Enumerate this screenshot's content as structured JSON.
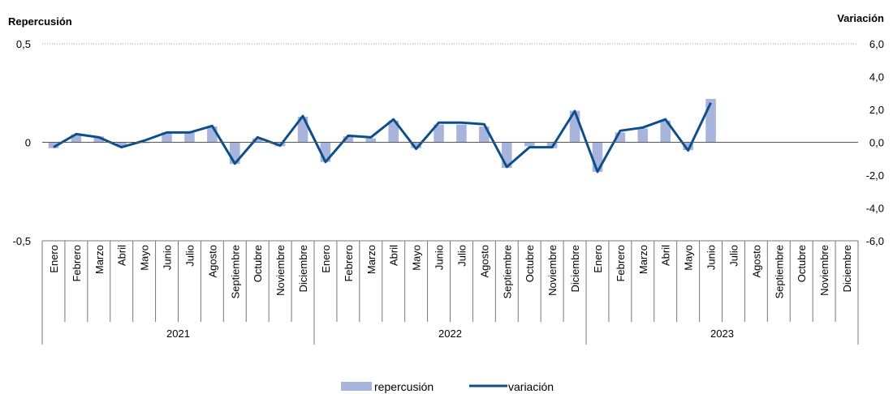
{
  "chart_data": {
    "type": "bar+line",
    "y_left_title": "Repercusión",
    "y_right_title": "Variación",
    "y_left_ticks": [
      "0,5",
      "0",
      "-0,5"
    ],
    "y_left_range": [
      -0.5,
      0.5
    ],
    "y_right_ticks": [
      "6,0",
      "4,0",
      "2,0",
      "0,0",
      "-2,0",
      "-4,0",
      "-6,0"
    ],
    "y_right_range": [
      -6,
      6
    ],
    "years": [
      "2021",
      "2022",
      "2023"
    ],
    "months": [
      "Enero",
      "Febrero",
      "Marzo",
      "Abril",
      "Mayo",
      "Junio",
      "Julio",
      "Agosto",
      "Septiembre",
      "Octubre",
      "Noviembre",
      "Diciembre"
    ],
    "series": [
      {
        "name": "repercusión",
        "type": "bar",
        "color": "#a9b4dc",
        "values": [
          -0.03,
          0.04,
          0.03,
          -0.02,
          0.0,
          0.05,
          0.05,
          0.08,
          -0.11,
          0.02,
          -0.02,
          0.13,
          -0.1,
          0.03,
          0.02,
          0.11,
          -0.03,
          0.09,
          0.09,
          0.08,
          -0.13,
          -0.02,
          -0.03,
          0.16,
          -0.15,
          0.05,
          0.07,
          0.11,
          -0.04,
          0.22,
          null,
          null,
          null,
          null,
          null,
          null
        ]
      },
      {
        "name": "variación",
        "type": "line",
        "color": "#0d4f8b",
        "axis": "right",
        "values": [
          -0.3,
          0.5,
          0.3,
          -0.3,
          0.1,
          0.6,
          0.6,
          1.0,
          -1.3,
          0.3,
          -0.2,
          1.6,
          -1.2,
          0.4,
          0.3,
          1.4,
          -0.4,
          1.2,
          1.2,
          1.1,
          -1.5,
          -0.3,
          -0.3,
          1.9,
          -1.8,
          0.7,
          0.9,
          1.4,
          -0.5,
          2.4,
          null,
          null,
          null,
          null,
          null,
          null
        ]
      }
    ],
    "legend": {
      "placement": "bottom-center",
      "entries": [
        "repercusión",
        "variación"
      ]
    },
    "grid": false
  }
}
